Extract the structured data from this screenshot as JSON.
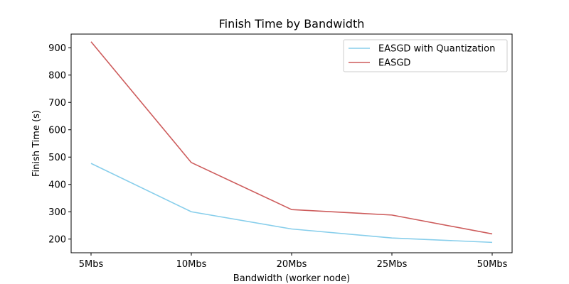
{
  "chart_data": {
    "type": "line",
    "title": "Finish Time by Bandwidth",
    "xlabel": "Bandwidth (worker node)",
    "ylabel": "Finish Time (s)",
    "categories": [
      "5Mbs",
      "10Mbs",
      "20Mbs",
      "25Mbs",
      "50Mbs"
    ],
    "ylim": [
      150,
      950
    ],
    "yticks": [
      200,
      300,
      400,
      500,
      600,
      700,
      800,
      900
    ],
    "grid": false,
    "legend_position": "top-right",
    "series": [
      {
        "name": "EASGD with Quantization",
        "color": "#87ceeb",
        "values": [
          477,
          300,
          237,
          204,
          188
        ]
      },
      {
        "name": "EASGD",
        "color": "#cd5c5c",
        "values": [
          922,
          480,
          308,
          288,
          219
        ]
      }
    ]
  }
}
